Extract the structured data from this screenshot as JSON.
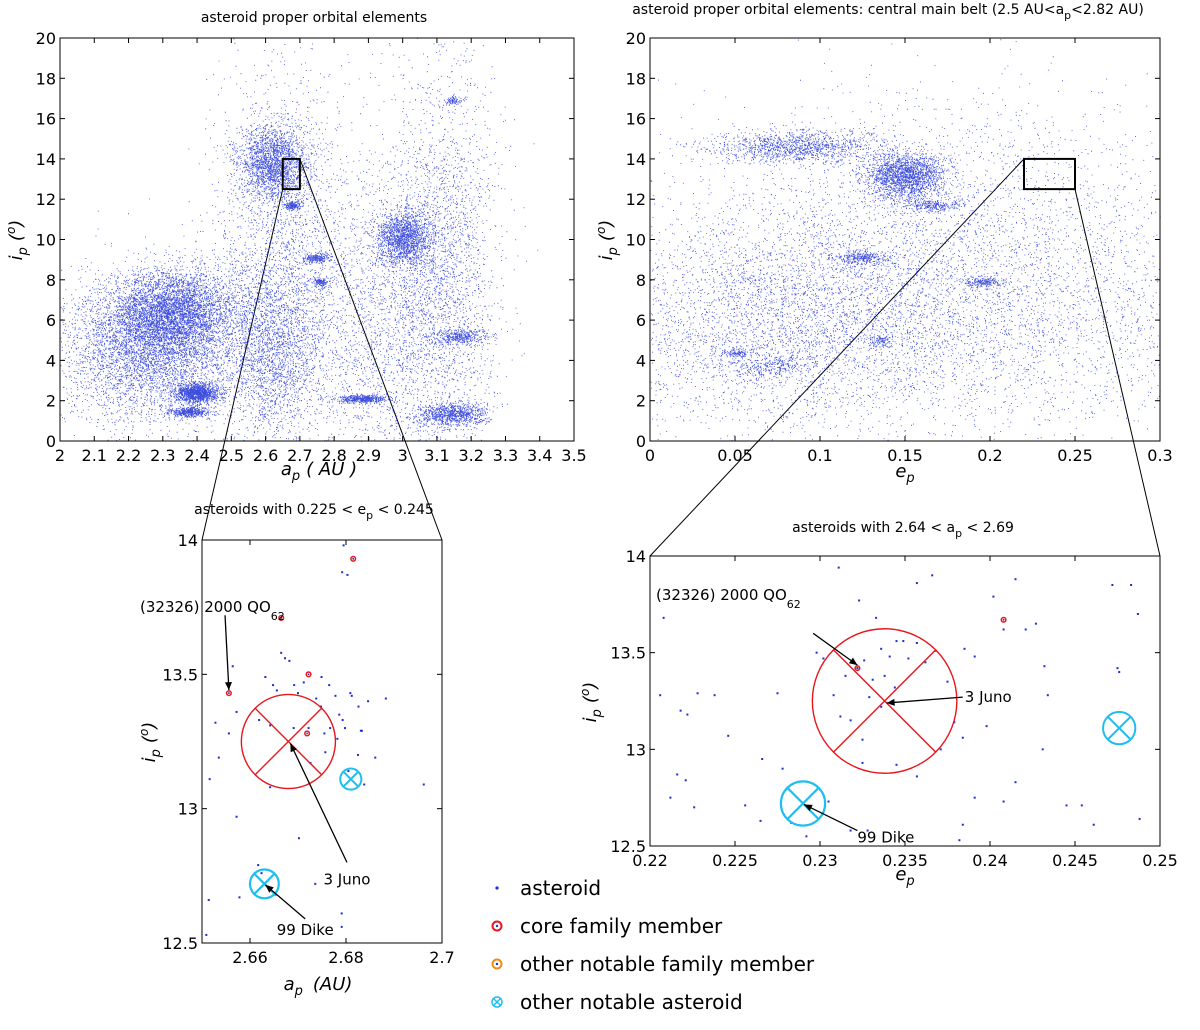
{
  "colors": {
    "asteroid": "#1c2fd6",
    "core_family": "#e8161c",
    "notable_family": "#f08a10",
    "notable_asteroid": "#1fbef0",
    "frame": "#000000"
  },
  "chart_data": [
    {
      "id": "panel_a_i",
      "type": "scatter",
      "title": "asteroid proper orbital elements",
      "xlabel": "a_p (AU)",
      "ylabel": "i_p (°)",
      "xlim": [
        2,
        3.5
      ],
      "ylim": [
        0,
        20
      ],
      "xticks": [
        2,
        2.1,
        2.2,
        2.3,
        2.4,
        2.5,
        2.6,
        2.7,
        2.8,
        2.9,
        3,
        3.1,
        3.2,
        3.3,
        3.4,
        3.5
      ],
      "yticks": [
        0,
        2,
        4,
        6,
        8,
        10,
        12,
        14,
        16,
        18,
        20
      ],
      "series": [
        {
          "marker": "asteroid-dot",
          "clusters": [
            {
              "x": 2.33,
              "y": 6.3,
              "sx": 0.09,
              "sy": 1.1,
              "weight": 1.0
            },
            {
              "x": 2.25,
              "y": 4.5,
              "sx": 0.12,
              "sy": 1.8,
              "weight": 0.9
            },
            {
              "x": 2.4,
              "y": 2.4,
              "sx": 0.03,
              "sy": 0.25,
              "weight": 0.3
            },
            {
              "x": 2.38,
              "y": 1.45,
              "sx": 0.03,
              "sy": 0.12,
              "weight": 0.1
            },
            {
              "x": 2.62,
              "y": 13.8,
              "sx": 0.05,
              "sy": 0.9,
              "weight": 0.45
            },
            {
              "x": 2.61,
              "y": 4.5,
              "sx": 0.08,
              "sy": 2.2,
              "weight": 0.5
            },
            {
              "x": 2.68,
              "y": 11.7,
              "sx": 0.012,
              "sy": 0.1,
              "weight": 0.04
            },
            {
              "x": 2.75,
              "y": 9.1,
              "sx": 0.02,
              "sy": 0.12,
              "weight": 0.05
            },
            {
              "x": 2.76,
              "y": 7.9,
              "sx": 0.012,
              "sy": 0.1,
              "weight": 0.03
            },
            {
              "x": 2.88,
              "y": 2.1,
              "sx": 0.035,
              "sy": 0.1,
              "weight": 0.12
            },
            {
              "x": 3.0,
              "y": 10.1,
              "sx": 0.04,
              "sy": 0.7,
              "weight": 0.35
            },
            {
              "x": 3.14,
              "y": 1.3,
              "sx": 0.05,
              "sy": 0.3,
              "weight": 0.2
            },
            {
              "x": 3.17,
              "y": 5.2,
              "sx": 0.04,
              "sy": 0.2,
              "weight": 0.08
            },
            {
              "x": 3.15,
              "y": 16.9,
              "sx": 0.012,
              "sy": 0.1,
              "weight": 0.02
            },
            {
              "x": 2.9,
              "y": 14.0,
              "sx": 0.05,
              "sy": 0.3,
              "weight": 0.0
            },
            {
              "x": 2.95,
              "y": 6.0,
              "sx": 0.12,
              "sy": 4.0,
              "weight": 0.5
            },
            {
              "x": 3.12,
              "y": 9.0,
              "sx": 0.08,
              "sy": 5.0,
              "weight": 0.5
            },
            {
              "x": 2.65,
              "y": 9.0,
              "sx": 0.1,
              "sy": 4.5,
              "weight": 0.5
            }
          ]
        }
      ],
      "zoom_box": {
        "x0": 2.65,
        "x1": 2.7,
        "y0": 12.5,
        "y1": 14
      }
    },
    {
      "id": "panel_e_i",
      "type": "scatter",
      "title": "asteroid proper orbital elements: central main belt (2.5 AU<a",
      "title_sub": "p",
      "title_end": "<2.82 AU)",
      "xlabel": "e_p",
      "ylabel": "i_p (°)",
      "xlim": [
        0,
        0.3
      ],
      "ylim": [
        0,
        20
      ],
      "xticks": [
        0,
        0.05,
        0.1,
        0.15,
        0.2,
        0.25,
        0.3
      ],
      "yticks": [
        0,
        2,
        4,
        6,
        8,
        10,
        12,
        14,
        16,
        18,
        20
      ],
      "series": [
        {
          "marker": "asteroid-dot",
          "clusters": [
            {
              "x": 0.15,
              "y": 13.2,
              "sx": 0.012,
              "sy": 0.6,
              "weight": 0.4
            },
            {
              "x": 0.085,
              "y": 14.6,
              "sx": 0.025,
              "sy": 0.4,
              "weight": 0.25
            },
            {
              "x": 0.165,
              "y": 11.7,
              "sx": 0.008,
              "sy": 0.15,
              "weight": 0.05
            },
            {
              "x": 0.125,
              "y": 9.1,
              "sx": 0.008,
              "sy": 0.15,
              "weight": 0.06
            },
            {
              "x": 0.195,
              "y": 7.9,
              "sx": 0.005,
              "sy": 0.12,
              "weight": 0.04
            },
            {
              "x": 0.07,
              "y": 3.8,
              "sx": 0.012,
              "sy": 0.3,
              "weight": 0.05
            },
            {
              "x": 0.05,
              "y": 4.4,
              "sx": 0.004,
              "sy": 0.1,
              "weight": 0.02
            },
            {
              "x": 0.16,
              "y": 5.5,
              "sx": 0.1,
              "sy": 2.5,
              "weight": 0.7
            },
            {
              "x": 0.18,
              "y": 10.0,
              "sx": 0.08,
              "sy": 3.5,
              "weight": 0.6
            },
            {
              "x": 0.07,
              "y": 6.0,
              "sx": 0.05,
              "sy": 2.8,
              "weight": 0.5
            },
            {
              "x": 0.135,
              "y": 5.0,
              "sx": 0.003,
              "sy": 0.15,
              "weight": 0.02
            }
          ]
        }
      ],
      "zoom_box": {
        "x0": 0.22,
        "x1": 0.25,
        "y0": 12.5,
        "y1": 14
      }
    },
    {
      "id": "zoom_a_i",
      "type": "scatter",
      "title": "asteroids with 0.225 < e",
      "title_sub": "p",
      "title_end": " < 0.245",
      "xlabel": "a_p (AU)",
      "ylabel": "i_p (°)",
      "xlim": [
        2.65,
        2.7
      ],
      "ylim": [
        12.5,
        14
      ],
      "xticks": [
        2.66,
        2.68,
        2.7
      ],
      "yticks": [
        12.5,
        13,
        13.5,
        14
      ],
      "points": [
        [
          2.6795,
          13.98
        ],
        [
          2.6803,
          13.87
        ],
        [
          2.6792,
          13.88
        ],
        [
          2.6665,
          13.58
        ],
        [
          2.6673,
          13.56
        ],
        [
          2.6682,
          13.55
        ],
        [
          2.6632,
          13.49
        ],
        [
          2.6648,
          13.46
        ],
        [
          2.6656,
          13.44
        ],
        [
          2.6692,
          13.46
        ],
        [
          2.67,
          13.43
        ],
        [
          2.6712,
          13.47
        ],
        [
          2.6738,
          13.41
        ],
        [
          2.6748,
          13.38
        ],
        [
          2.6765,
          13.46
        ],
        [
          2.6778,
          13.42
        ],
        [
          2.6786,
          13.35
        ],
        [
          2.6793,
          13.33
        ],
        [
          2.6812,
          13.42
        ],
        [
          2.6826,
          13.38
        ],
        [
          2.6846,
          13.4
        ],
        [
          2.6619,
          13.33
        ],
        [
          2.6642,
          13.31
        ],
        [
          2.6691,
          13.3
        ],
        [
          2.6722,
          13.3
        ],
        [
          2.6755,
          13.28
        ],
        [
          2.6767,
          13.3
        ],
        [
          2.6782,
          13.26
        ],
        [
          2.6798,
          13.3
        ],
        [
          2.6831,
          13.29
        ],
        [
          2.6556,
          13.28
        ],
        [
          2.6572,
          13.36
        ],
        [
          2.6564,
          13.53
        ],
        [
          2.6528,
          13.32
        ],
        [
          2.6516,
          13.11
        ],
        [
          2.6535,
          13.19
        ],
        [
          2.6861,
          13.19
        ],
        [
          2.6805,
          13.14
        ],
        [
          2.6838,
          13.09
        ],
        [
          2.6962,
          13.09
        ],
        [
          2.6833,
          13.29
        ],
        [
          2.6757,
          13.21
        ],
        [
          2.6726,
          13.17
        ],
        [
          2.6642,
          13.08
        ],
        [
          2.6572,
          12.97
        ],
        [
          2.6617,
          12.79
        ],
        [
          2.6624,
          12.76
        ],
        [
          2.6637,
          12.71
        ],
        [
          2.6653,
          12.68
        ],
        [
          2.6578,
          12.67
        ],
        [
          2.6514,
          12.66
        ],
        [
          2.6736,
          12.72
        ],
        [
          2.6702,
          12.89
        ],
        [
          2.6791,
          12.61
        ],
        [
          2.6791,
          12.56
        ],
        [
          2.6509,
          12.53
        ],
        [
          2.6825,
          13.2
        ],
        [
          2.6883,
          13.41
        ],
        [
          2.6809,
          13.43
        ],
        [
          2.6749,
          13.49
        ]
      ],
      "core_members": [
        [
          2.6815,
          13.93
        ],
        [
          2.6665,
          13.71
        ],
        [
          2.6556,
          13.43
        ],
        [
          2.6722,
          13.5
        ],
        [
          2.6719,
          13.28
        ]
      ],
      "labels": {
        "juno": "3 Juno",
        "dike": "99 Dike",
        "qo62": "(32326) 2000 QO",
        "qo62_sub": "62"
      },
      "juno": {
        "x": 2.668,
        "y": 13.25,
        "r_x": 0.0098
      },
      "dike": {
        "x": 2.663,
        "y": 12.72,
        "r_x": 0.003
      },
      "other_notable": {
        "x": 2.681,
        "y": 13.11,
        "r_x": 0.0022
      },
      "qo62_point": {
        "x": 2.6556,
        "y": 13.43
      },
      "juno_label_anchor": {
        "x": 2.6802,
        "y": 12.8
      },
      "dike_label_anchor": {
        "x": 2.6715,
        "y": 12.59
      },
      "qo62_label_anchor": {
        "x": 2.6548,
        "y": 13.72
      }
    },
    {
      "id": "zoom_e_i",
      "type": "scatter",
      "title": "asteroids with 2.64 < a",
      "title_sub": "p",
      "title_end": " < 2.69",
      "xlabel": "e_p",
      "ylabel": "i_p (°)",
      "xlim": [
        0.22,
        0.25
      ],
      "ylim": [
        12.5,
        14
      ],
      "xticks": [
        0.22,
        0.225,
        0.23,
        0.235,
        0.24,
        0.245,
        0.25
      ],
      "yticks": [
        12.5,
        13,
        13.5,
        14
      ],
      "points": [
        [
          0.2208,
          13.68
        ],
        [
          0.2206,
          13.28
        ],
        [
          0.2218,
          13.2
        ],
        [
          0.2222,
          13.18
        ],
        [
          0.2228,
          13.29
        ],
        [
          0.2238,
          13.28
        ],
        [
          0.2246,
          13.07
        ],
        [
          0.2216,
          12.87
        ],
        [
          0.2221,
          12.84
        ],
        [
          0.2212,
          12.75
        ],
        [
          0.2226,
          12.7
        ],
        [
          0.2256,
          12.71
        ],
        [
          0.2265,
          12.63
        ],
        [
          0.2275,
          13.29
        ],
        [
          0.2278,
          12.9
        ],
        [
          0.2292,
          12.55
        ],
        [
          0.2305,
          12.73
        ],
        [
          0.2318,
          12.58
        ],
        [
          0.2328,
          12.58
        ],
        [
          0.2302,
          13.47
        ],
        [
          0.2308,
          13.28
        ],
        [
          0.2298,
          13.5
        ],
        [
          0.2312,
          13.17
        ],
        [
          0.2315,
          13.38
        ],
        [
          0.2322,
          13.42
        ],
        [
          0.2326,
          13.46
        ],
        [
          0.2331,
          13.36
        ],
        [
          0.2336,
          13.52
        ],
        [
          0.2341,
          13.48
        ],
        [
          0.2345,
          13.56
        ],
        [
          0.2349,
          13.56
        ],
        [
          0.2352,
          13.47
        ],
        [
          0.2357,
          13.55
        ],
        [
          0.2338,
          13.38
        ],
        [
          0.2344,
          13.32
        ],
        [
          0.2329,
          13.27
        ],
        [
          0.2325,
          13.05
        ],
        [
          0.2318,
          13.15
        ],
        [
          0.2336,
          13.22
        ],
        [
          0.2362,
          13.45
        ],
        [
          0.2368,
          13.51
        ],
        [
          0.2375,
          13.35
        ],
        [
          0.2379,
          13.14
        ],
        [
          0.2385,
          13.52
        ],
        [
          0.2391,
          13.48
        ],
        [
          0.2398,
          13.12
        ],
        [
          0.2402,
          13.79
        ],
        [
          0.2408,
          13.62
        ],
        [
          0.2415,
          13.88
        ],
        [
          0.2421,
          13.62
        ],
        [
          0.2427,
          13.65
        ],
        [
          0.2432,
          13.43
        ],
        [
          0.2434,
          13.28
        ],
        [
          0.2431,
          13.0
        ],
        [
          0.2445,
          12.71
        ],
        [
          0.2454,
          12.71
        ],
        [
          0.2461,
          12.61
        ],
        [
          0.2472,
          13.85
        ],
        [
          0.2475,
          13.42
        ],
        [
          0.2476,
          13.4
        ],
        [
          0.2483,
          13.85
        ],
        [
          0.2487,
          13.7
        ],
        [
          0.2488,
          12.64
        ],
        [
          0.2333,
          13.68
        ],
        [
          0.2323,
          13.77
        ],
        [
          0.2311,
          13.94
        ],
        [
          0.2357,
          13.86
        ],
        [
          0.2366,
          13.9
        ],
        [
          0.2325,
          12.93
        ],
        [
          0.2384,
          12.61
        ],
        [
          0.2382,
          12.53
        ],
        [
          0.2391,
          12.75
        ],
        [
          0.2408,
          12.73
        ],
        [
          0.2415,
          12.83
        ],
        [
          0.2384,
          13.06
        ],
        [
          0.2266,
          12.95
        ],
        [
          0.2283,
          12.62
        ],
        [
          0.2345,
          12.92
        ],
        [
          0.2357,
          12.86
        ],
        [
          0.2371,
          13.0
        ]
      ],
      "core_members": [
        [
          0.2408,
          13.67
        ],
        [
          0.2322,
          13.42
        ]
      ],
      "labels": {
        "juno": "3 Juno",
        "dike": "99 Dike",
        "qo62": "(32326) 2000 QO",
        "qo62_sub": "62"
      },
      "juno": {
        "x": 0.2338,
        "y": 13.25,
        "r_x": 0.00425
      },
      "dike": {
        "x": 0.229,
        "y": 12.72,
        "r_x": 0.0013
      },
      "other_notable": {
        "x": 0.2476,
        "y": 13.11,
        "r_x": 0.00095
      },
      "qo62_point": {
        "x": 0.2322,
        "y": 13.42
      },
      "juno_label_anchor": {
        "x": 0.2384,
        "y": 13.27
      },
      "dike_label_anchor": {
        "x": 0.2322,
        "y": 12.58
      },
      "qo62_label_anchor": {
        "x": 0.2296,
        "y": 13.6
      }
    }
  ],
  "legend": {
    "placement": "bottom-center",
    "items": [
      {
        "label": "asteroid",
        "marker": "dot",
        "color_key": "asteroid"
      },
      {
        "label": "core family member",
        "marker": "ring",
        "color_key": "core_family"
      },
      {
        "label": "other notable family member",
        "marker": "ring",
        "color_key": "notable_family"
      },
      {
        "label": "other notable asteroid",
        "marker": "crossed-ring",
        "color_key": "notable_asteroid"
      }
    ]
  }
}
